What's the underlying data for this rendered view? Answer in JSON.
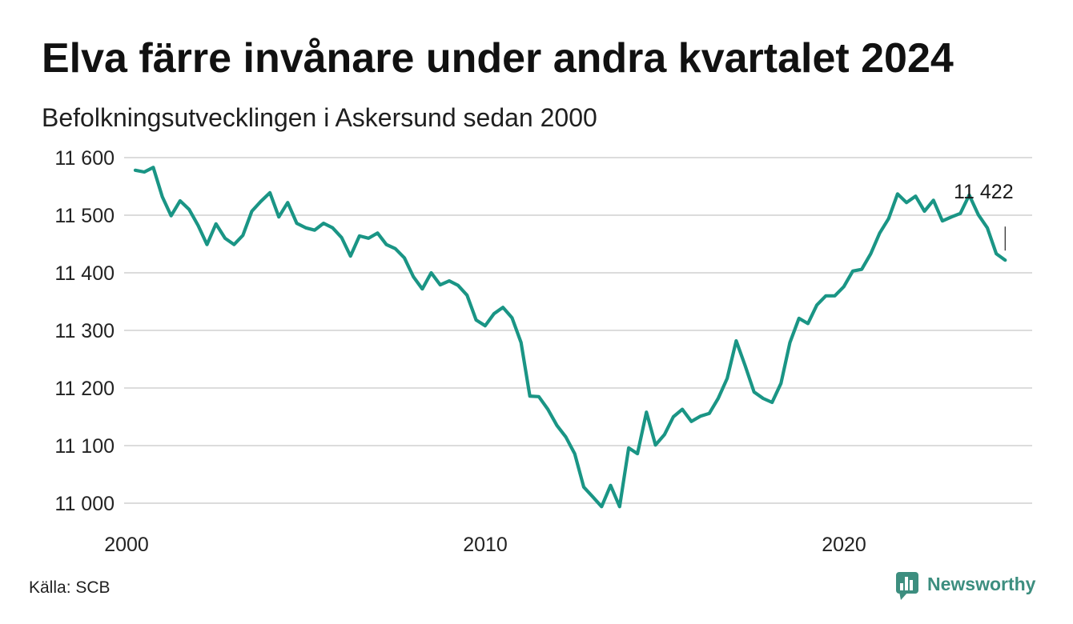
{
  "colors": {
    "line": "#1a9585",
    "logo": "#3d8e7f",
    "grid": "#dcdcdc",
    "text": "#111111"
  },
  "footer": {
    "source": "Källa: SCB",
    "logo_text": "Newsworthy",
    "logo_icon": "newsworthy-chart-bubble-icon"
  },
  "chart_data": {
    "type": "line",
    "title": "Elva färre invånare under andra kvartalet 2024",
    "subtitle": "Befolkningsutvecklingen i Askersund sedan 2000",
    "xlim": [
      "2000-01-01",
      "2025-04-01"
    ],
    "ylim": [
      11000,
      11600
    ],
    "grid": "horizontal",
    "legend": "none",
    "x_ticks": [
      {
        "value": "2000-01-01",
        "label": "2000"
      },
      {
        "value": "2010-01-01",
        "label": "2010"
      },
      {
        "value": "2020-01-01",
        "label": "2020"
      }
    ],
    "y_ticks": [
      {
        "value": 11000,
        "label": "11 000"
      },
      {
        "value": 11100,
        "label": "11 100"
      },
      {
        "value": 11200,
        "label": "11 200"
      },
      {
        "value": 11300,
        "label": "11 300"
      },
      {
        "value": 11400,
        "label": "11 400"
      },
      {
        "value": 11500,
        "label": "11 500"
      },
      {
        "value": 11600,
        "label": "11 600"
      }
    ],
    "x": [
      "2000-03-31",
      "2000-06-30",
      "2000-09-30",
      "2000-12-31",
      "2001-03-31",
      "2001-06-30",
      "2001-09-30",
      "2001-12-31",
      "2002-03-31",
      "2002-06-30",
      "2002-09-30",
      "2002-12-31",
      "2003-03-31",
      "2003-06-30",
      "2003-09-30",
      "2003-12-31",
      "2004-03-31",
      "2004-06-30",
      "2004-09-30",
      "2004-12-31",
      "2005-03-31",
      "2005-06-30",
      "2005-09-30",
      "2005-12-31",
      "2006-03-31",
      "2006-06-30",
      "2006-09-30",
      "2006-12-31",
      "2007-03-31",
      "2007-06-30",
      "2007-09-30",
      "2007-12-31",
      "2008-03-31",
      "2008-06-30",
      "2008-09-30",
      "2008-12-31",
      "2009-03-31",
      "2009-06-30",
      "2009-09-30",
      "2009-12-31",
      "2010-03-31",
      "2010-06-30",
      "2010-09-30",
      "2010-12-31",
      "2011-03-31",
      "2011-06-30",
      "2011-09-30",
      "2011-12-31",
      "2012-03-31",
      "2012-06-30",
      "2012-09-30",
      "2012-12-31",
      "2013-03-31",
      "2013-06-30",
      "2013-09-30",
      "2013-12-31",
      "2014-03-31",
      "2014-06-30",
      "2014-09-30",
      "2014-12-31",
      "2015-03-31",
      "2015-06-30",
      "2015-09-30",
      "2015-12-31",
      "2016-03-31",
      "2016-06-30",
      "2016-09-30",
      "2016-12-31",
      "2017-03-31",
      "2017-06-30",
      "2017-09-30",
      "2017-12-31",
      "2018-03-31",
      "2018-06-30",
      "2018-09-30",
      "2018-12-31",
      "2019-03-31",
      "2019-06-30",
      "2019-09-30",
      "2019-12-31",
      "2020-03-31",
      "2020-06-30",
      "2020-09-30",
      "2020-12-31",
      "2021-03-31",
      "2021-06-30",
      "2021-09-30",
      "2021-12-31",
      "2022-03-31",
      "2022-06-30",
      "2022-09-30",
      "2022-12-31",
      "2023-03-31",
      "2023-06-30",
      "2023-09-30",
      "2023-12-31",
      "2024-03-31",
      "2024-06-30"
    ],
    "series": [
      {
        "values": [
          11578,
          11575,
          11583,
          11532,
          11499,
          11525,
          11510,
          11482,
          11449,
          11485,
          11460,
          11449,
          11465,
          11507,
          11524,
          11539,
          11497,
          11522,
          11486,
          11478,
          11474,
          11486,
          11478,
          11461,
          11429,
          11464,
          11460,
          11469,
          11449,
          11442,
          11426,
          11393,
          11372,
          11400,
          11379,
          11386,
          11378,
          11361,
          11318,
          11308,
          11329,
          11340,
          11322,
          11279,
          11186,
          11185,
          11163,
          11135,
          11115,
          11086,
          11028,
          11011,
          10994,
          11031,
          10994,
          11096,
          11086,
          11158,
          11101,
          11119,
          11150,
          11163,
          11142,
          11151,
          11156,
          11182,
          11217,
          11282,
          11239,
          11193,
          11182,
          11175,
          11208,
          11279,
          11321,
          11312,
          11344,
          11360,
          11360,
          11376,
          11403,
          11406,
          11433,
          11469,
          11494,
          11537,
          11522,
          11533,
          11507,
          11526,
          11490,
          11497,
          11503,
          11535,
          11501,
          11478,
          11433,
          11422
        ]
      }
    ],
    "annotation": {
      "text": "11 422",
      "x": "2024-06-30",
      "y": 11422
    }
  }
}
